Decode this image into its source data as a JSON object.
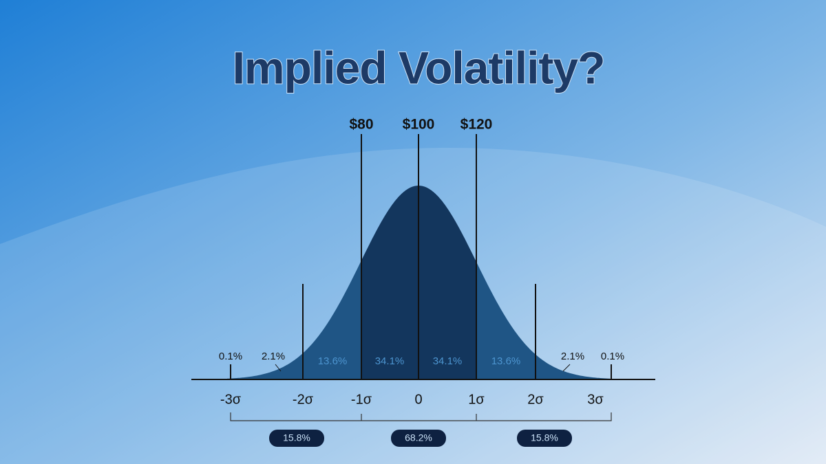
{
  "title": "Implied Volatility?",
  "price_labels": [
    "$80",
    "$100",
    "$120"
  ],
  "sigma_labels": [
    "-3σ",
    "-2σ",
    "-1σ",
    "0",
    "1σ",
    "2σ",
    "3σ"
  ],
  "region_labels": [
    "0.1%",
    "2.1%",
    "13.6%",
    "34.1%",
    "34.1%",
    "13.6%",
    "2.1%",
    "0.1%"
  ],
  "range_labels": [
    "15.8%",
    "68.2%",
    "15.8%"
  ]
}
